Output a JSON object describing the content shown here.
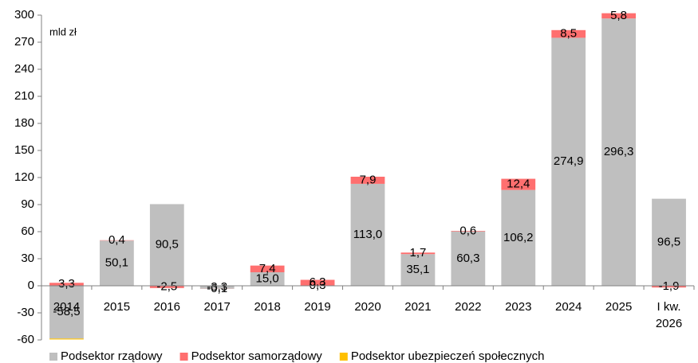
{
  "chart_data": {
    "type": "stacked_bar",
    "y_label": "mld zł",
    "categories": [
      "2014",
      "2015",
      "2016",
      "2017",
      "2018",
      "2019",
      "2020",
      "2021",
      "2022",
      "2023",
      "2024",
      "2025",
      "I kw.\n2026"
    ],
    "series": [
      {
        "name": "Podsektor rządowy",
        "color": "#bfbfbf",
        "values": [
          -58.5,
          50.1,
          90.5,
          -3.3,
          15.0,
          0.3,
          113.0,
          35.1,
          60.3,
          106.2,
          274.9,
          296.3,
          96.5
        ],
        "value_labels": [
          "-58,5",
          "50,1",
          "90,5",
          "-3,3",
          "15,0",
          "0,3",
          "113,0",
          "35,1",
          "60,3",
          "106,2",
          "274,9",
          "296,3",
          "96,5"
        ]
      },
      {
        "name": "Podsektor samorządowy",
        "color": "#ff6f6f",
        "values": [
          3.3,
          0.4,
          -2.5,
          -0.1,
          7.4,
          6.3,
          7.9,
          1.7,
          0.6,
          12.4,
          8.5,
          5.8,
          -1.9
        ],
        "value_labels": [
          "3,3",
          "0,4",
          "-2,5",
          "-0,1",
          "7,4",
          "6,3",
          "7,9",
          "1,7",
          "0,6",
          "12,4",
          "8,5",
          "5,8",
          "-1,9"
        ]
      },
      {
        "name": "Podsektor ubezpieczeń społecznych",
        "color": "#ffc000",
        "values": [
          -1.0,
          0,
          0,
          0,
          0,
          0,
          0,
          0,
          0,
          0,
          0,
          0,
          0
        ]
      }
    ],
    "ylim": [
      -60,
      300
    ],
    "yticks": [
      -60,
      -30,
      0,
      30,
      60,
      90,
      120,
      150,
      180,
      210,
      240,
      270,
      300
    ],
    "grid": false,
    "legend": "bottom"
  }
}
